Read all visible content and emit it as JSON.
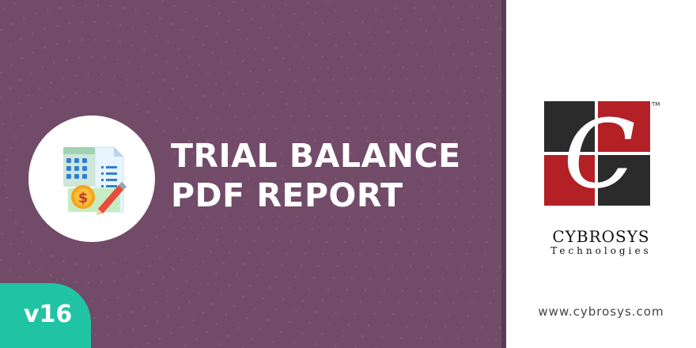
{
  "banner": {
    "title_line1": "TRIAL BALANCE",
    "title_line2": "PDF REPORT",
    "version": "v16"
  },
  "brand": {
    "logo_letter": "C",
    "name": "CYBROSYS",
    "tagline": "Technologies",
    "trademark": "TM",
    "website": "www.cybrosys.com"
  },
  "colors": {
    "banner_bg": "#714b67",
    "version_badge": "#20c4a4",
    "logo_red": "#b32025",
    "logo_dark": "#2b2b2b"
  },
  "icons": [
    "calculator-icon",
    "document-icon",
    "dollar-coin-icon",
    "pencil-icon"
  ]
}
